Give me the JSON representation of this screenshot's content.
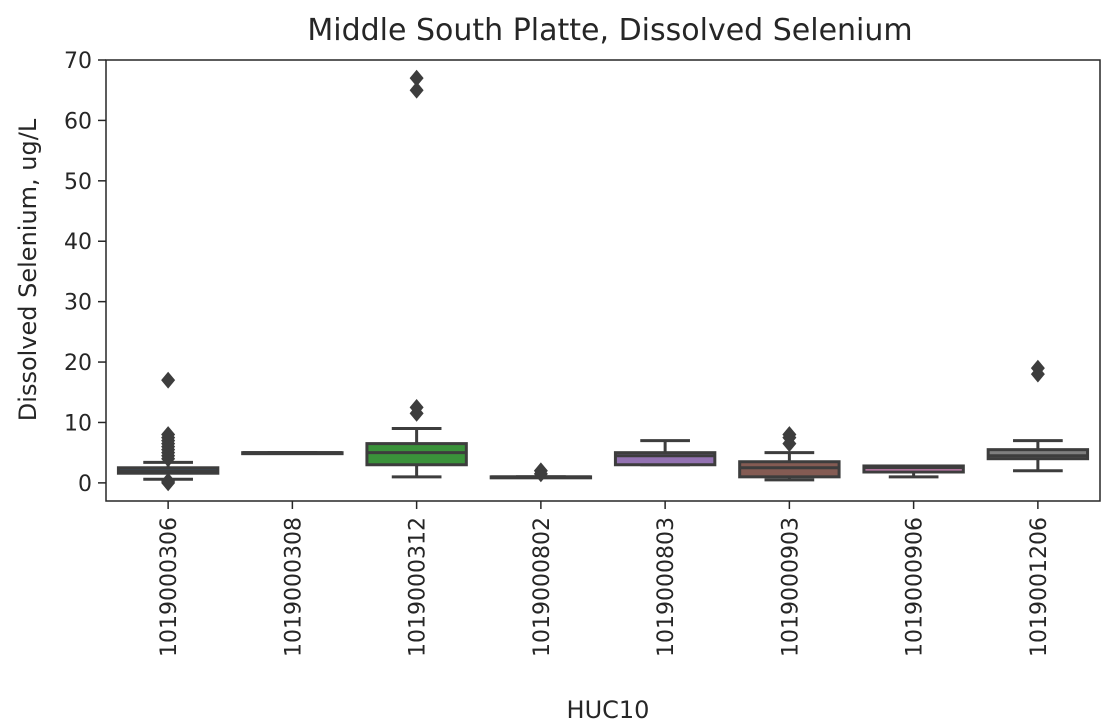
{
  "chart_data": {
    "type": "box",
    "title": "Middle South Platte, Dissolved Selenium",
    "xlabel": "HUC10",
    "ylabel": "Dissolved Selenium, ug/L",
    "ylim": [
      -3,
      70
    ],
    "yticks": [
      0,
      10,
      20,
      30,
      40,
      50,
      60,
      70
    ],
    "grid": false,
    "categories": [
      "1019000306",
      "1019000308",
      "1019000312",
      "1019000802",
      "1019000803",
      "1019000903",
      "1019000906",
      "1019001206"
    ],
    "boxes": [
      {
        "category": "1019000306",
        "whisker_low": 0.6,
        "q1": 1.6,
        "median": 2.0,
        "q3": 2.5,
        "whisker_high": 3.4,
        "outliers": [
          0.0,
          0.3,
          4.0,
          4.5,
          5.0,
          5.5,
          6.0,
          6.5,
          7.0,
          7.5,
          8.0,
          17.0
        ],
        "color": "#3a75b0"
      },
      {
        "category": "1019000308",
        "whisker_low": 5.0,
        "q1": 5.0,
        "median": 5.0,
        "q3": 5.0,
        "whisker_high": 5.0,
        "outliers": [],
        "color": "#e1812c"
      },
      {
        "category": "1019000312",
        "whisker_low": 1.0,
        "q1": 3.0,
        "median": 5.0,
        "q3": 6.5,
        "whisker_high": 9.0,
        "outliers": [
          11.5,
          12.5,
          65.0,
          67.0
        ],
        "color": "#3a923a"
      },
      {
        "category": "1019000802",
        "whisker_low": 1.0,
        "q1": 1.0,
        "median": 1.0,
        "q3": 1.0,
        "whisker_high": 1.0,
        "outliers": [
          1.5,
          2.0
        ],
        "color": "#c03d3e"
      },
      {
        "category": "1019000803",
        "whisker_low": 3.0,
        "q1": 3.0,
        "median": 4.5,
        "q3": 5.0,
        "whisker_high": 7.0,
        "outliers": [],
        "color": "#9372b2"
      },
      {
        "category": "1019000903",
        "whisker_low": 0.5,
        "q1": 1.0,
        "median": 2.5,
        "q3": 3.5,
        "whisker_high": 5.0,
        "outliers": [
          6.5,
          7.5,
          8.0
        ],
        "color": "#845b53"
      },
      {
        "category": "1019000906",
        "whisker_low": 1.0,
        "q1": 1.8,
        "median": 2.5,
        "q3": 2.8,
        "whisker_high": 2.8,
        "outliers": [],
        "color": "#d684bd"
      },
      {
        "category": "1019001206",
        "whisker_low": 2.0,
        "q1": 4.0,
        "median": 4.5,
        "q3": 5.5,
        "whisker_high": 7.0,
        "outliers": [
          18.0,
          19.0
        ],
        "color": "#7f7f7f"
      }
    ]
  }
}
